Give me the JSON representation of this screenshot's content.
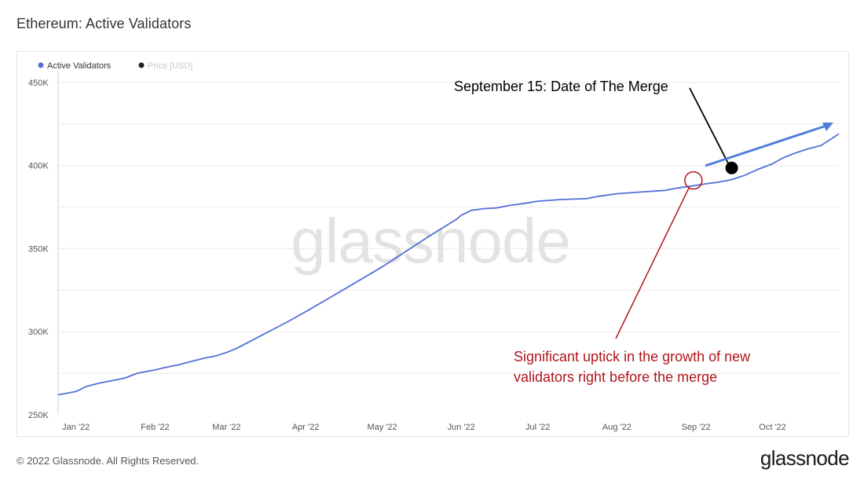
{
  "title": "Ethereum: Active Validators",
  "footer": {
    "copyright": "© 2022 Glassnode. All Rights Reserved.",
    "logo": "glassnode"
  },
  "watermark": "glassnode",
  "colors": {
    "series": "#5470d6",
    "price": "#222222",
    "merge_marker": "#000000",
    "uptick_annotation": "#b0161c",
    "trend_arrow": "#4f7fd9"
  },
  "chart_data": {
    "type": "line",
    "title": "Ethereum: Active Validators",
    "legend": {
      "placement": "top-left",
      "items": [
        {
          "name": "Active Validators",
          "color": "#5470d6",
          "active": true
        },
        {
          "name": "Price [USD]",
          "color": "#222222",
          "active": false
        }
      ]
    },
    "x_ticks": [
      "Jan '22",
      "Feb '22",
      "Mar '22",
      "Apr '22",
      "May '22",
      "Jun '22",
      "Jul '22",
      "Aug '22",
      "Sep '22",
      "Oct '22"
    ],
    "y_ticks": [
      "250K",
      "300K",
      "350K",
      "400K",
      "450K"
    ],
    "ylim": [
      250000,
      457000
    ],
    "xlim": [
      "2021-12-25",
      "2022-10-27"
    ],
    "grid": true,
    "series": [
      {
        "name": "Active Validators",
        "points": [
          [
            "2021-12-25",
            262000
          ],
          [
            "2022-01-01",
            264000
          ],
          [
            "2022-01-05",
            267000
          ],
          [
            "2022-01-10",
            269000
          ],
          [
            "2022-01-15",
            270500
          ],
          [
            "2022-01-20",
            272000
          ],
          [
            "2022-01-25",
            275000
          ],
          [
            "2022-02-01",
            277000
          ],
          [
            "2022-02-05",
            278500
          ],
          [
            "2022-02-10",
            280000
          ],
          [
            "2022-02-15",
            282000
          ],
          [
            "2022-02-20",
            284000
          ],
          [
            "2022-02-25",
            285500
          ],
          [
            "2022-03-01",
            287500
          ],
          [
            "2022-03-05",
            290000
          ],
          [
            "2022-03-10",
            294000
          ],
          [
            "2022-03-15",
            298000
          ],
          [
            "2022-03-20",
            302000
          ],
          [
            "2022-03-25",
            306000
          ],
          [
            "2022-04-01",
            312000
          ],
          [
            "2022-04-10",
            320000
          ],
          [
            "2022-04-20",
            329000
          ],
          [
            "2022-05-01",
            339000
          ],
          [
            "2022-05-10",
            348000
          ],
          [
            "2022-05-20",
            358000
          ],
          [
            "2022-05-30",
            367500
          ],
          [
            "2022-06-01",
            370000
          ],
          [
            "2022-06-05",
            373000
          ],
          [
            "2022-06-10",
            374000
          ],
          [
            "2022-06-15",
            374500
          ],
          [
            "2022-06-20",
            376000
          ],
          [
            "2022-06-25",
            377000
          ],
          [
            "2022-07-01",
            378500
          ],
          [
            "2022-07-10",
            379500
          ],
          [
            "2022-07-20",
            380000
          ],
          [
            "2022-07-25",
            381500
          ],
          [
            "2022-08-01",
            383000
          ],
          [
            "2022-08-10",
            384000
          ],
          [
            "2022-08-20",
            385000
          ],
          [
            "2022-08-25",
            386500
          ],
          [
            "2022-09-01",
            388000
          ],
          [
            "2022-09-05",
            389000
          ],
          [
            "2022-09-10",
            390000
          ],
          [
            "2022-09-15",
            391500
          ],
          [
            "2022-09-20",
            394000
          ],
          [
            "2022-09-25",
            397500
          ],
          [
            "2022-10-01",
            401000
          ],
          [
            "2022-10-05",
            404500
          ],
          [
            "2022-10-10",
            407500
          ],
          [
            "2022-10-15",
            410000
          ],
          [
            "2022-10-20",
            412000
          ],
          [
            "2022-10-24",
            416000
          ],
          [
            "2022-10-27",
            419000
          ]
        ]
      }
    ],
    "annotations": [
      {
        "id": "merge",
        "text": "September 15: Date of The Merge",
        "date": "2022-09-15",
        "value": 398500
      },
      {
        "id": "uptick",
        "lines": [
          "Significant uptick in the growth of new",
          "validators right before the merge"
        ],
        "date": "2022-08-31",
        "value": 391000
      }
    ]
  }
}
